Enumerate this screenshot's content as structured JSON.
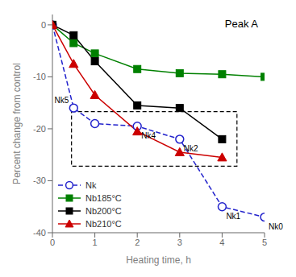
{
  "chart_data": {
    "type": "line",
    "title": "Peak A",
    "xlabel": "Heating time, h",
    "ylabel": "Percent change from control",
    "xlim": [
      0,
      5
    ],
    "ylim": [
      -40,
      2
    ],
    "xticks": [
      0,
      1,
      2,
      3,
      4,
      5
    ],
    "yticks": [
      0,
      -10,
      -20,
      -30,
      -40
    ],
    "grid": false,
    "legend": "lower left",
    "series": [
      {
        "name": "Nk",
        "color": "#2222cc",
        "marker": "circle",
        "line_style": "dashed",
        "x": [
          0,
          0.5,
          1,
          2,
          3,
          4,
          5
        ],
        "values": [
          0,
          -16,
          -19,
          -19.5,
          -22,
          -35,
          -37
        ]
      },
      {
        "name": "Nb185°C",
        "color": "#008000",
        "marker": "square",
        "line_style": "solid",
        "x": [
          0,
          0.5,
          1,
          2,
          3,
          4,
          5
        ],
        "values": [
          0,
          -3.5,
          -5.5,
          -8.5,
          -9.3,
          -9.5,
          -10
        ]
      },
      {
        "name": "Nb200°C",
        "color": "#000000",
        "marker": "square",
        "line_style": "solid",
        "x": [
          0,
          0.5,
          1,
          2,
          3,
          4
        ],
        "values": [
          0,
          -2.0,
          -7.0,
          -15.5,
          -16.0,
          -22.0
        ]
      },
      {
        "name": "Nb210°C",
        "color": "#cc0000",
        "marker": "triangle",
        "line_style": "solid",
        "x": [
          0,
          0.5,
          1,
          2,
          3,
          4
        ],
        "values": [
          0,
          -7.5,
          -13.5,
          -20.5,
          -24.5,
          -25.5
        ]
      }
    ],
    "annotations": [
      {
        "text": "Nk5",
        "x": 0.5,
        "y": -16
      },
      {
        "text": "Nk4",
        "x": 2.0,
        "y": -19.5
      },
      {
        "text": "Nk2",
        "x": 3.0,
        "y": -22
      },
      {
        "text": "Nk1",
        "x": 4.0,
        "y": -35
      },
      {
        "text": "Nk0",
        "x": 5.0,
        "y": -37
      }
    ],
    "box": {
      "x": [
        0.45,
        4.35
      ],
      "y": [
        -27.2,
        -16.7
      ],
      "line_style": "dashed"
    }
  }
}
